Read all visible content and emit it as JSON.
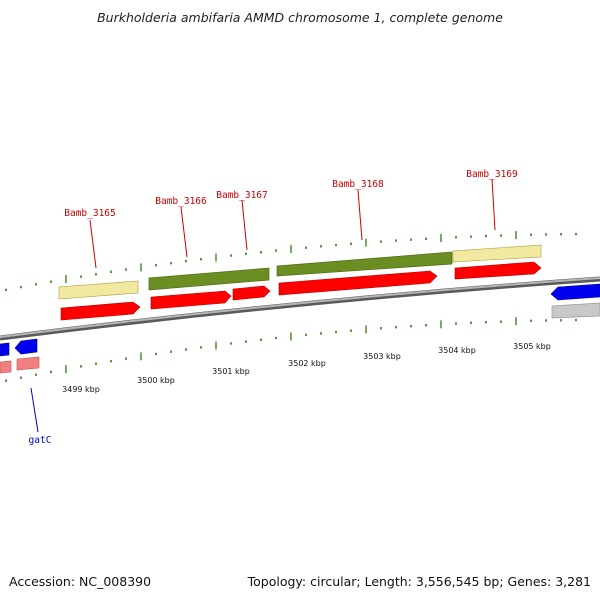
{
  "title": "Burkholderia ambifaria AMMD chromosome 1, complete genome",
  "accession": "Accession: NC_008390",
  "summary": "Topology: circular; Length: 3,556,545 bp; Genes: 3,281",
  "colors": {
    "backbone": "#7d7d7d",
    "tick": "#2e7d10",
    "cds_forward": "#ff0000",
    "cds_reverse": "#0000ee",
    "cds_pale": "#f08080",
    "feature_pale": "#f2e9a0",
    "feature_green": "#6b8e23",
    "feature_grey": "#bdbdbd",
    "label_red": "#cc0000",
    "label_blue": "#0000cc"
  },
  "genes": [
    {
      "name": "Bamb_3165",
      "strand": "forward"
    },
    {
      "name": "Bamb_3166",
      "strand": "forward"
    },
    {
      "name": "Bamb_3167",
      "strand": "forward"
    },
    {
      "name": "Bamb_3168",
      "strand": "forward"
    },
    {
      "name": "Bamb_3169",
      "strand": "forward"
    },
    {
      "name": "gatC",
      "strand": "reverse"
    }
  ],
  "scale_labels": [
    "3499 kbp",
    "3500 kbp",
    "3501 kbp",
    "3502 kbp",
    "3503 kbp",
    "3504 kbp",
    "3505 kbp"
  ]
}
